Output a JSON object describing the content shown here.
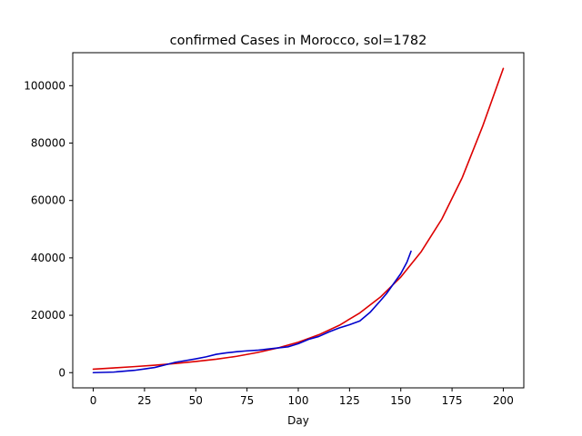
{
  "chart_data": {
    "type": "line",
    "title": "confirmed Cases in Morocco, sol=1782",
    "xlabel": "Day",
    "ylabel": "",
    "xlim": [
      -10,
      210
    ],
    "ylim": [
      -5300,
      111500
    ],
    "xticks": [
      0,
      25,
      50,
      75,
      100,
      125,
      150,
      175,
      200
    ],
    "yticks": [
      0,
      20000,
      40000,
      60000,
      80000,
      100000
    ],
    "grid": false,
    "legend": "none",
    "series": [
      {
        "color": "#dd0000",
        "x": [
          0,
          10,
          20,
          30,
          40,
          50,
          60,
          70,
          80,
          90,
          100,
          110,
          120,
          130,
          140,
          150,
          160,
          170,
          180,
          190,
          200
        ],
        "y": [
          1200,
          1650,
          2100,
          2600,
          3200,
          3900,
          4700,
          5700,
          7000,
          8600,
          10600,
          13200,
          16500,
          20800,
          26300,
          33300,
          42200,
          53500,
          68000,
          86000,
          106000
        ]
      },
      {
        "color": "#0000cc",
        "x": [
          0,
          10,
          20,
          25,
          30,
          35,
          40,
          45,
          50,
          55,
          60,
          65,
          70,
          75,
          80,
          85,
          90,
          95,
          100,
          105,
          110,
          115,
          120,
          125,
          130,
          135,
          140,
          143,
          146,
          150,
          153,
          155
        ],
        "y": [
          0,
          200,
          800,
          1300,
          1800,
          2700,
          3600,
          4200,
          4800,
          5500,
          6400,
          6900,
          7300,
          7600,
          7800,
          8200,
          8600,
          9000,
          10100,
          11600,
          12600,
          14200,
          15600,
          16700,
          18000,
          21000,
          25000,
          27500,
          30500,
          34500,
          38500,
          42300
        ]
      }
    ]
  }
}
